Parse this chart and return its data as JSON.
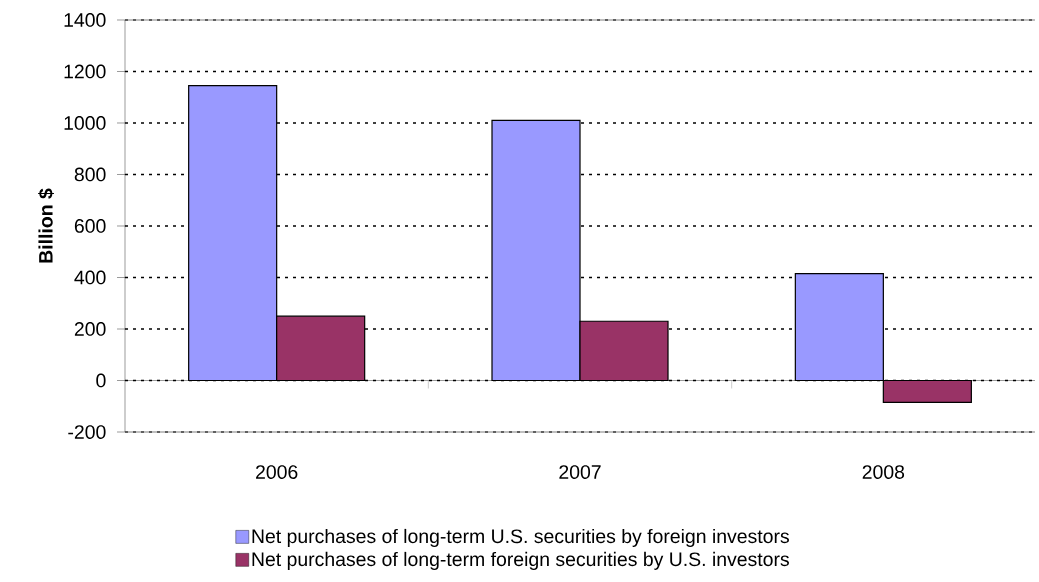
{
  "chart_data": {
    "type": "bar",
    "ylabel": "Billion $",
    "categories": [
      "2006",
      "2007",
      "2008"
    ],
    "series": [
      {
        "name": "Net purchases of long-term U.S. securities by foreign investors",
        "color": "#9999ff",
        "values": [
          1145,
          1010,
          415
        ]
      },
      {
        "name": "Net purchases of long-term foreign securities by U.S. investors",
        "color": "#993366",
        "values": [
          250,
          230,
          -85
        ]
      }
    ],
    "ylim": [
      -200,
      1400
    ],
    "yticks": [
      -200,
      0,
      200,
      400,
      600,
      800,
      1000,
      1200,
      1400
    ],
    "grid": "y",
    "legend": "bottom"
  }
}
